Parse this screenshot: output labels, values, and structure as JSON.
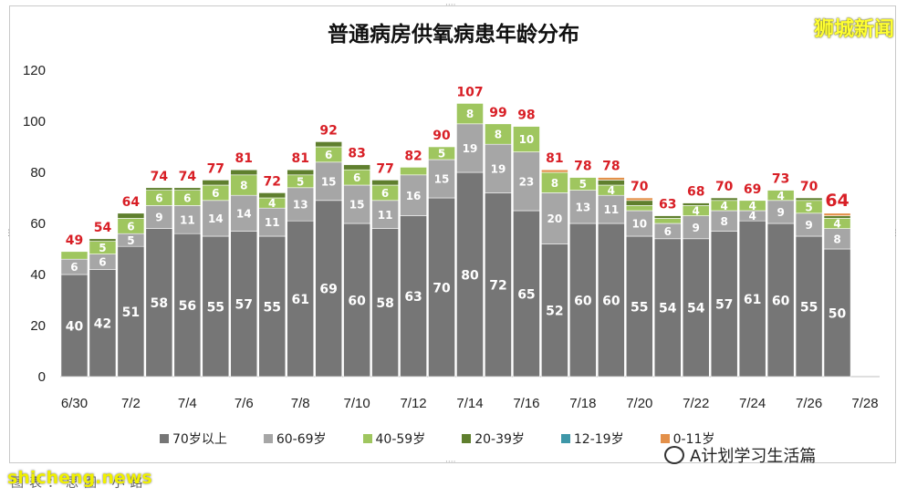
{
  "watermark_top": "狮城新闻",
  "watermark_bottom": "shicheng.news",
  "wechat_account": "A计划学习生活篇",
  "source_note": "图表：思图·小路",
  "colors": {
    "age_70_plus": "#767676",
    "age_60_69": "#a6a6a6",
    "age_40_59": "#9fc65f",
    "age_20_39": "#5f7f2e",
    "age_12_19": "#3e97a8",
    "age_0_11": "#e3904a",
    "total_label": "#d81f26"
  },
  "chart_data": {
    "type": "bar",
    "stacked": true,
    "title": "普通病房供氧病患年龄分布",
    "ylim": [
      0,
      120
    ],
    "yticks": [
      0,
      20,
      40,
      60,
      80,
      100,
      120
    ],
    "xtick_labels": [
      "6/30",
      "7/2",
      "7/4",
      "7/6",
      "7/8",
      "7/10",
      "7/12",
      "7/14",
      "7/16",
      "7/18",
      "7/20",
      "7/22",
      "7/24",
      "7/26",
      "7/28"
    ],
    "legend_position": "bottom",
    "categories": [
      "6/30",
      "7/1",
      "7/2",
      "7/3",
      "7/4",
      "7/5",
      "7/6",
      "7/7",
      "7/8",
      "7/9",
      "7/10",
      "7/11",
      "7/12",
      "7/13",
      "7/14",
      "7/15",
      "7/16",
      "7/17",
      "7/18",
      "7/19",
      "7/20",
      "7/21",
      "7/22",
      "7/23",
      "7/24",
      "7/25",
      "7/26",
      "7/27",
      "7/28"
    ],
    "series": [
      {
        "name": "70岁以上",
        "values": [
          40,
          42,
          51,
          58,
          56,
          55,
          57,
          55,
          61,
          69,
          60,
          58,
          63,
          70,
          80,
          72,
          65,
          52,
          60,
          60,
          55,
          54,
          54,
          57,
          61,
          60,
          55,
          50,
          null
        ]
      },
      {
        "name": "60-69岁",
        "values": [
          6,
          6,
          5,
          9,
          11,
          14,
          14,
          11,
          13,
          15,
          15,
          11,
          16,
          15,
          19,
          19,
          23,
          20,
          13,
          11,
          10,
          6,
          9,
          8,
          4,
          9,
          9,
          8,
          null
        ]
      },
      {
        "name": "40-59岁",
        "values": [
          3,
          5,
          6,
          6,
          6,
          6,
          8,
          4,
          5,
          6,
          6,
          6,
          3,
          5,
          8,
          8,
          10,
          8,
          5,
          4,
          2,
          2,
          4,
          4,
          4,
          4,
          5,
          4,
          null
        ]
      },
      {
        "name": "20-39岁",
        "values": [
          0,
          1,
          2,
          1,
          1,
          2,
          2,
          2,
          2,
          2,
          2,
          2,
          0,
          0,
          0,
          0,
          0,
          0,
          0,
          2,
          2,
          1,
          1,
          1,
          0,
          0,
          1,
          1,
          null
        ]
      },
      {
        "name": "12-19岁",
        "values": [
          0,
          0,
          0,
          0,
          0,
          0,
          0,
          0,
          0,
          0,
          0,
          0,
          0,
          0,
          0,
          0,
          0,
          0,
          0,
          0,
          0,
          0,
          0,
          0,
          0,
          0,
          0,
          0,
          null
        ]
      },
      {
        "name": "0-11岁",
        "values": [
          0,
          0,
          0,
          0,
          0,
          0,
          0,
          0,
          0,
          0,
          0,
          0,
          0,
          0,
          0,
          0,
          0,
          1,
          0,
          1,
          1,
          0,
          0,
          0,
          0,
          0,
          0,
          1,
          null
        ]
      }
    ],
    "totals": [
      49,
      54,
      64,
      74,
      74,
      77,
      81,
      72,
      81,
      92,
      83,
      77,
      82,
      90,
      107,
      99,
      98,
      81,
      78,
      78,
      70,
      63,
      68,
      70,
      69,
      73,
      70,
      64,
      null
    ]
  }
}
